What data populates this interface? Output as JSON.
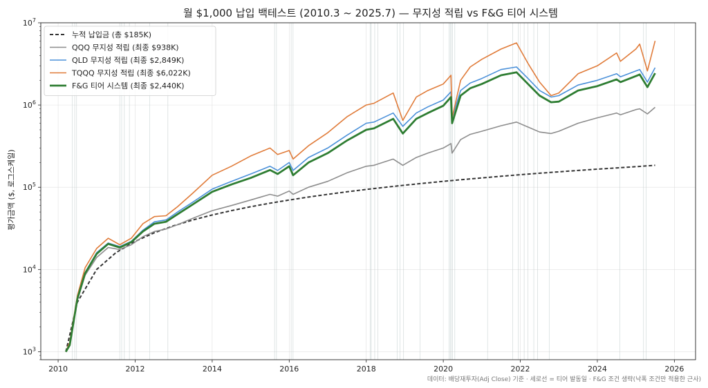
{
  "chart_data": {
    "type": "line",
    "title": "월 $1,000 납입 백테스트 (2010.3 ~ 2025.7) — 무지성 적립 vs F&G 티어 시스템",
    "ylabel": "평가금액 ($, 로그스케일)",
    "xlabel": "",
    "y_scale": "log",
    "xlim": [
      2009.55,
      2026.55
    ],
    "ylim": [
      800,
      10000000
    ],
    "x_ticks": [
      2010,
      2012,
      2014,
      2016,
      2018,
      2020,
      2022,
      2024,
      2026
    ],
    "x_tick_labels": [
      "2010",
      "2012",
      "2014",
      "2016",
      "2018",
      "2020",
      "2022",
      "2024",
      "2026"
    ],
    "y_ticks": [
      1000,
      10000,
      100000,
      1000000,
      10000000
    ],
    "y_tick_labels": [
      {
        "base": "10",
        "exp": "3"
      },
      {
        "base": "10",
        "exp": "4"
      },
      {
        "base": "10",
        "exp": "5"
      },
      {
        "base": "10",
        "exp": "6"
      },
      {
        "base": "10",
        "exp": "7"
      }
    ],
    "grid": true,
    "legend_position": "top-left",
    "note": "데이터: 배당재투자(Adj Close) 기준 · 세로선 = 티어 발동일 · F&G 조건 생략(낙폭 조건만 적용한 근사)",
    "tier_trigger_dates": [
      2010.37,
      2010.43,
      2010.48,
      2011.6,
      2011.65,
      2011.72,
      2011.85,
      2012.38,
      2012.85,
      2015.62,
      2015.67,
      2016.05,
      2016.1,
      2018.1,
      2018.13,
      2018.22,
      2018.3,
      2018.8,
      2018.88,
      2018.97,
      2019.4,
      2020.15,
      2020.18,
      2020.21,
      2020.24,
      2020.3,
      2021.15,
      2021.8,
      2021.95,
      2022.1,
      2022.2,
      2022.35,
      2022.45,
      2022.75,
      2024.58,
      2025.2,
      2025.27
    ],
    "series": [
      {
        "name": "누적 납입금 (총 $185K)",
        "color": "#333333",
        "style": "dashed",
        "width": 2,
        "x": [
          2010.2,
          2010.5,
          2011.0,
          2011.5,
          2012.0,
          2012.5,
          2013.0,
          2013.5,
          2014.0,
          2014.5,
          2015.0,
          2015.5,
          2016.0,
          2016.5,
          2017.0,
          2017.5,
          2018.0,
          2018.5,
          2019.0,
          2019.5,
          2020.0,
          2020.5,
          2021.0,
          2021.5,
          2022.0,
          2022.5,
          2023.0,
          2023.5,
          2024.0,
          2024.5,
          2025.0,
          2025.5
        ],
        "y": [
          1000,
          4000,
          10000,
          16000,
          22000,
          28000,
          34000,
          40000,
          46000,
          52000,
          58000,
          64000,
          70000,
          76000,
          82000,
          88000,
          94000,
          100000,
          106000,
          112000,
          118000,
          124000,
          130000,
          136000,
          142000,
          148000,
          154000,
          160000,
          166000,
          172000,
          178000,
          185000
        ]
      },
      {
        "name": "QQQ 무지성 적립 (최종 $938K)",
        "color": "#8c8c8c",
        "style": "solid",
        "width": 1.6,
        "x": [
          2010.2,
          2010.3,
          2010.5,
          2010.7,
          2011.0,
          2011.3,
          2011.6,
          2011.9,
          2012.2,
          2012.5,
          2012.8,
          2013.1,
          2013.5,
          2014.0,
          2014.5,
          2015.0,
          2015.5,
          2015.7,
          2016.0,
          2016.1,
          2016.5,
          2017.0,
          2017.5,
          2018.0,
          2018.2,
          2018.7,
          2018.95,
          2019.3,
          2019.6,
          2020.0,
          2020.2,
          2020.23,
          2020.45,
          2020.7,
          2021.0,
          2021.5,
          2021.9,
          2022.2,
          2022.5,
          2022.8,
          2023.0,
          2023.5,
          2024.0,
          2024.5,
          2024.6,
          2025.0,
          2025.1,
          2025.3,
          2025.5
        ],
        "y": [
          1000,
          1200,
          4200,
          8500,
          14000,
          18500,
          17500,
          20000,
          25000,
          29000,
          31000,
          35000,
          42000,
          52000,
          60000,
          70000,
          82000,
          78000,
          90000,
          82000,
          100000,
          118000,
          150000,
          180000,
          185000,
          220000,
          185000,
          230000,
          260000,
          300000,
          340000,
          260000,
          380000,
          440000,
          480000,
          560000,
          620000,
          540000,
          470000,
          450000,
          480000,
          600000,
          700000,
          800000,
          760000,
          880000,
          900000,
          780000,
          938000
        ]
      },
      {
        "name": "QLD 무지성 적립 (최종 $2,849K)",
        "color": "#4a90d9",
        "style": "solid",
        "width": 1.6,
        "x": [
          2010.2,
          2010.3,
          2010.5,
          2010.7,
          2011.0,
          2011.3,
          2011.6,
          2011.9,
          2012.2,
          2012.5,
          2012.8,
          2013.1,
          2013.5,
          2014.0,
          2014.5,
          2015.0,
          2015.5,
          2015.7,
          2016.0,
          2016.1,
          2016.5,
          2017.0,
          2017.5,
          2018.0,
          2018.2,
          2018.7,
          2018.95,
          2019.3,
          2019.6,
          2020.0,
          2020.2,
          2020.23,
          2020.45,
          2020.7,
          2021.0,
          2021.5,
          2021.9,
          2022.2,
          2022.5,
          2022.8,
          2023.0,
          2023.5,
          2024.0,
          2024.5,
          2024.6,
          2025.0,
          2025.1,
          2025.3,
          2025.5
        ],
        "y": [
          1000,
          1250,
          4500,
          9200,
          16000,
          21000,
          19000,
          22000,
          30000,
          38000,
          40000,
          50000,
          66000,
          95000,
          118000,
          145000,
          180000,
          160000,
          200000,
          160000,
          230000,
          300000,
          430000,
          600000,
          620000,
          800000,
          550000,
          800000,
          950000,
          1150000,
          1450000,
          700000,
          1500000,
          1850000,
          2100000,
          2700000,
          2900000,
          2100000,
          1500000,
          1250000,
          1300000,
          1750000,
          2000000,
          2400000,
          2200000,
          2600000,
          2700000,
          1900000,
          2849000
        ]
      },
      {
        "name": "TQQQ 무지성 적립 (최종 $6,022K)",
        "color": "#e07b39",
        "style": "solid",
        "width": 1.6,
        "x": [
          2010.2,
          2010.3,
          2010.5,
          2010.7,
          2011.0,
          2011.3,
          2011.6,
          2011.9,
          2012.2,
          2012.5,
          2012.8,
          2013.1,
          2013.5,
          2014.0,
          2014.5,
          2015.0,
          2015.5,
          2015.7,
          2016.0,
          2016.1,
          2016.5,
          2017.0,
          2017.5,
          2018.0,
          2018.2,
          2018.7,
          2018.95,
          2019.3,
          2019.6,
          2020.0,
          2020.2,
          2020.23,
          2020.45,
          2020.7,
          2021.0,
          2021.5,
          2021.9,
          2022.2,
          2022.5,
          2022.8,
          2023.0,
          2023.5,
          2024.0,
          2024.5,
          2024.6,
          2025.0,
          2025.1,
          2025.3,
          2025.5
        ],
        "y": [
          1000,
          1300,
          4800,
          10500,
          18000,
          24000,
          20000,
          24000,
          36000,
          44000,
          45000,
          58000,
          85000,
          140000,
          180000,
          240000,
          300000,
          250000,
          280000,
          220000,
          320000,
          460000,
          720000,
          1000000,
          1050000,
          1400000,
          650000,
          1250000,
          1500000,
          1800000,
          2300000,
          700000,
          2000000,
          2900000,
          3600000,
          4800000,
          5700000,
          3200000,
          1900000,
          1300000,
          1400000,
          2400000,
          3000000,
          4300000,
          3400000,
          4800000,
          5500000,
          2600000,
          6022000
        ]
      },
      {
        "name": "F&G 티어 시스템 (최종 $2,440K)",
        "color": "#2e7d32",
        "style": "solid",
        "width": 2.8,
        "x": [
          2010.2,
          2010.3,
          2010.5,
          2010.7,
          2011.0,
          2011.3,
          2011.6,
          2011.9,
          2012.2,
          2012.5,
          2012.8,
          2013.1,
          2013.5,
          2014.0,
          2014.5,
          2015.0,
          2015.5,
          2015.7,
          2016.0,
          2016.1,
          2016.5,
          2017.0,
          2017.5,
          2018.0,
          2018.2,
          2018.7,
          2018.95,
          2019.3,
          2019.6,
          2020.0,
          2020.2,
          2020.23,
          2020.45,
          2020.7,
          2021.0,
          2021.5,
          2021.9,
          2022.2,
          2022.5,
          2022.8,
          2023.0,
          2023.5,
          2024.0,
          2024.5,
          2024.6,
          2025.0,
          2025.1,
          2025.3,
          2025.5
        ],
        "y": [
          1000,
          1200,
          4400,
          9000,
          15500,
          20500,
          18500,
          21500,
          29000,
          36000,
          38000,
          47000,
          62000,
          88000,
          108000,
          130000,
          162000,
          145000,
          180000,
          140000,
          200000,
          260000,
          370000,
          500000,
          520000,
          680000,
          450000,
          680000,
          800000,
          980000,
          1250000,
          600000,
          1300000,
          1600000,
          1800000,
          2300000,
          2500000,
          1800000,
          1300000,
          1080000,
          1100000,
          1500000,
          1700000,
          2050000,
          1900000,
          2250000,
          2350000,
          1650000,
          2440000
        ]
      }
    ]
  }
}
